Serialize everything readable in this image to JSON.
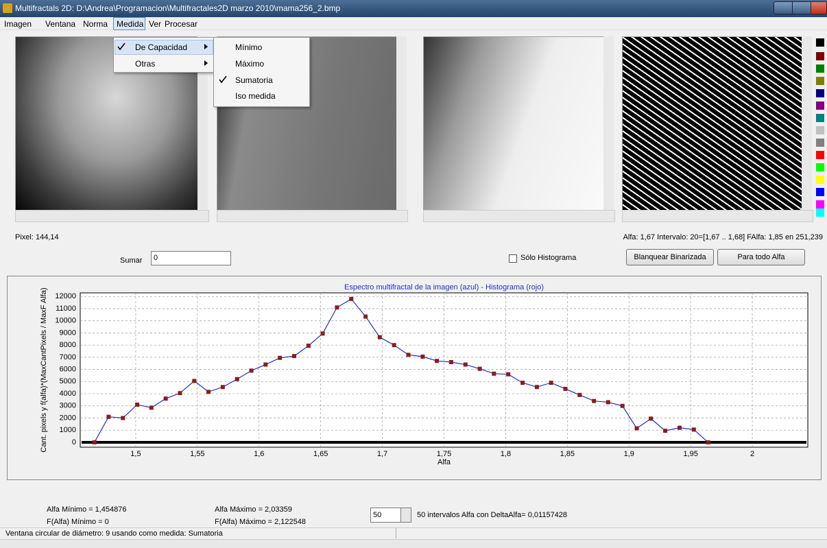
{
  "window": {
    "title": "Multifractals 2D: D:\\Andrea\\Programacion\\Multifractales2D marzo 2010\\mama256_2.bmp"
  },
  "menu": [
    "Imagen",
    "Ventana",
    "Norma",
    "Medida",
    "Ver",
    "Procesar"
  ],
  "dropdown": [
    "De Capacidad",
    "Otras"
  ],
  "submenu": [
    "Mínimo",
    "Máximo",
    "Sumatoria",
    "Iso medida"
  ],
  "pixel": "Pixel: 144,14",
  "alfa_info": "Alfa: 1,67 Intervalo: 20=[1,67 .. 1,68]  FAlfa: 1,85 en 251,239",
  "sumar": {
    "label": "Sumar",
    "value": "0"
  },
  "checkbox": "Sólo Histograma",
  "buttons": [
    "Blanquear Binarizada",
    "Para todo Alfa"
  ],
  "chart_data": {
    "type": "line",
    "title": "Espectro multifractal de la imagen (azul)  - Histograma (rojo)",
    "x_label": "Alfa",
    "y_label": "Cant. pixels y  f(alfa)*(MaxCantPixels / MaxF Alfa)",
    "x": [
      1.4665,
      1.478,
      1.4896,
      1.5012,
      1.5127,
      1.5243,
      1.5359,
      1.5475,
      1.559,
      1.5706,
      1.5822,
      1.5938,
      1.6053,
      1.6169,
      1.6285,
      1.6401,
      1.6516,
      1.6632,
      1.6748,
      1.6864,
      1.6979,
      1.7095,
      1.7211,
      1.7327,
      1.7442,
      1.7558,
      1.7674,
      1.779,
      1.7905,
      1.8021,
      1.8137,
      1.8253,
      1.8368,
      1.8484,
      1.86,
      1.8716,
      1.8831,
      1.8947,
      1.9063,
      1.9178,
      1.9294,
      1.941,
      1.9526,
      1.9641
    ],
    "values": [
      0,
      2100,
      2000,
      3100,
      2850,
      3600,
      4050,
      5050,
      4150,
      4550,
      5200,
      5900,
      6400,
      6950,
      7100,
      7950,
      8950,
      11100,
      11800,
      10350,
      8650,
      8000,
      7200,
      7050,
      6700,
      6600,
      6400,
      6050,
      5650,
      5600,
      4900,
      4550,
      4900,
      4400,
      3900,
      3400,
      3300,
      3000,
      1150,
      1950,
      950,
      1200,
      1050,
      0
    ],
    "color": "#1f2fc4",
    "marker_color": "#8b1c1c",
    "xlim": [
      1.455,
      2.045
    ],
    "ylim": [
      -400,
      12300
    ],
    "xticks": [
      {
        "value": 1.5,
        "label": "1,5"
      },
      {
        "value": 1.55,
        "label": "1,55"
      },
      {
        "value": 1.6,
        "label": "1,6"
      },
      {
        "value": 1.65,
        "label": "1,65"
      },
      {
        "value": 1.7,
        "label": "1,7"
      },
      {
        "value": 1.75,
        "label": "1,75"
      },
      {
        "value": 1.8,
        "label": "1,8"
      },
      {
        "value": 1.85,
        "label": "1,85"
      },
      {
        "value": 1.9,
        "label": "1,9"
      },
      {
        "value": 1.95,
        "label": "1,95"
      },
      2
    ],
    "yticks": [
      0,
      1000,
      2000,
      3000,
      4000,
      5000,
      6000,
      7000,
      8000,
      9000,
      10000,
      11000,
      12000
    ],
    "grid": true
  },
  "stats": [
    "Alfa Mínimo = 1,454876",
    "F(Alfa) Mínimo = 0",
    "Alfa Máximo = 2,03359",
    "F(Alfa) Máximo = 2,122548"
  ],
  "intervals": {
    "value": "50",
    "text": "50 intervalos Alfa con DeltaAlfa= 0,01157428"
  },
  "status": "Ventana circular de diámetro: 9 usando como medida: Sumatoria"
}
